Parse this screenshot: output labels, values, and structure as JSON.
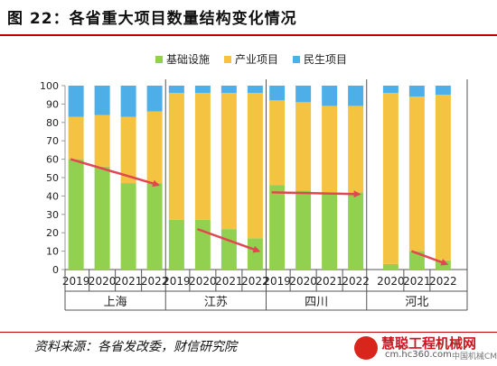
{
  "title": "图 22：各省重大项目数量结构变化情况",
  "source": "资料来源：各省发改委，财信研究院",
  "watermark": {
    "brand": "慧聪工程机械网",
    "site": "cm.hc360.com",
    "sub": "中国机械CM"
  },
  "colors": {
    "infra": "#92d050",
    "industry": "#f5c342",
    "livelihood": "#4eaee8",
    "arrow": "#e2474f",
    "title_rule": "#c00000"
  },
  "chart_data": {
    "type": "bar",
    "stacked": true,
    "ylim": [
      0,
      100
    ],
    "yticks": [
      0,
      10,
      20,
      30,
      40,
      50,
      60,
      70,
      80,
      90,
      100
    ],
    "legend_position": "top",
    "groups": [
      {
        "name": "上海",
        "years": [
          "2019",
          "2020",
          "2021",
          "2022"
        ]
      },
      {
        "name": "江苏",
        "years": [
          "2019",
          "2020",
          "2021",
          "2022"
        ]
      },
      {
        "name": "四川",
        "years": [
          "2019",
          "2020",
          "2021",
          "2022"
        ]
      },
      {
        "name": "河北",
        "years": [
          "2020",
          "2021",
          "2022"
        ]
      }
    ],
    "series": [
      {
        "name": "基础设施",
        "values": [
          60,
          56,
          47,
          47,
          27,
          27,
          22,
          17,
          46,
          43,
          42,
          42,
          3,
          10,
          5
        ]
      },
      {
        "name": "产业项目",
        "values": [
          23,
          28,
          36,
          39,
          69,
          69,
          74,
          79,
          46,
          48,
          47,
          47,
          93,
          84,
          90
        ]
      },
      {
        "name": "民生项目",
        "values": [
          17,
          16,
          17,
          14,
          4,
          4,
          4,
          4,
          8,
          9,
          11,
          11,
          4,
          6,
          5
        ]
      }
    ],
    "trend_arrows": [
      {
        "group": "上海",
        "from": [
          "2019",
          60
        ],
        "to": [
          "2022",
          46
        ]
      },
      {
        "group": "江苏",
        "from": [
          "2020",
          22
        ],
        "to": [
          "2022",
          10
        ]
      },
      {
        "group": "四川",
        "from": [
          "2019",
          42
        ],
        "to": [
          "2022",
          41
        ]
      },
      {
        "group": "河北",
        "from": [
          "2021",
          10
        ],
        "to": [
          "2022",
          3
        ]
      }
    ]
  }
}
